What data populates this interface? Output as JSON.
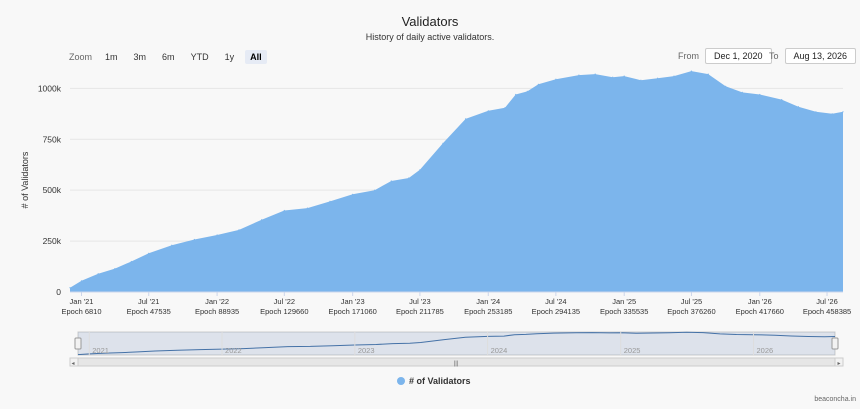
{
  "title": "Validators",
  "subtitle": "History of daily active validators.",
  "zoom": {
    "label": "Zoom",
    "buttons": [
      "1m",
      "3m",
      "6m",
      "YTD",
      "1y",
      "All"
    ],
    "active": "All"
  },
  "range": {
    "from_label": "From",
    "from_value": "Dec 1, 2020",
    "to_label": "To",
    "to_value": "Aug 13, 2026"
  },
  "credits": "beaconcha.in",
  "colors": {
    "series": "#7cb5ec",
    "navigator_line": "#4572a7"
  },
  "chart_data": {
    "type": "area",
    "title": "Validators",
    "subtitle": "History of daily active validators.",
    "ylabel": "# of Validators",
    "ylim": [
      0,
      1100000
    ],
    "yticks": [
      0,
      250000,
      500000,
      750000,
      1000000
    ],
    "ytick_labels": [
      "0",
      "250k",
      "500k",
      "750k",
      "1000k"
    ],
    "x_range": [
      "2020-12-01",
      "2026-08-13"
    ],
    "xticks": [
      {
        "date": "2021-01-01",
        "label": "Jan '21",
        "epoch": "Epoch 6810"
      },
      {
        "date": "2021-07-01",
        "label": "Jul '21",
        "epoch": "Epoch 47535"
      },
      {
        "date": "2022-01-01",
        "label": "Jan '22",
        "epoch": "Epoch 88935"
      },
      {
        "date": "2022-07-01",
        "label": "Jul '22",
        "epoch": "Epoch 129660"
      },
      {
        "date": "2023-01-01",
        "label": "Jan '23",
        "epoch": "Epoch 171060"
      },
      {
        "date": "2023-07-01",
        "label": "Jul '23",
        "epoch": "Epoch 211785"
      },
      {
        "date": "2024-01-01",
        "label": "Jan '24",
        "epoch": "Epoch 253185"
      },
      {
        "date": "2024-07-01",
        "label": "Jul '24",
        "epoch": "Epoch 294135"
      },
      {
        "date": "2025-01-01",
        "label": "Jan '25",
        "epoch": "Epoch 335535"
      },
      {
        "date": "2025-07-01",
        "label": "Jul '25",
        "epoch": "Epoch 376260"
      },
      {
        "date": "2026-01-01",
        "label": "Jan '26",
        "epoch": "Epoch 417660"
      },
      {
        "date": "2026-07-01",
        "label": "Jul '26",
        "epoch": "Epoch 458385"
      }
    ],
    "series": [
      {
        "name": "# of Validators",
        "points": [
          [
            "2020-12-01",
            21000
          ],
          [
            "2021-01-01",
            55000
          ],
          [
            "2021-02-15",
            90000
          ],
          [
            "2021-04-01",
            115000
          ],
          [
            "2021-05-15",
            150000
          ],
          [
            "2021-07-01",
            190000
          ],
          [
            "2021-09-01",
            230000
          ],
          [
            "2021-11-01",
            258000
          ],
          [
            "2022-01-01",
            280000
          ],
          [
            "2022-03-01",
            305000
          ],
          [
            "2022-05-01",
            355000
          ],
          [
            "2022-07-01",
            400000
          ],
          [
            "2022-09-01",
            412000
          ],
          [
            "2022-11-01",
            445000
          ],
          [
            "2023-01-01",
            480000
          ],
          [
            "2023-03-01",
            500000
          ],
          [
            "2023-04-15",
            545000
          ],
          [
            "2023-06-01",
            560000
          ],
          [
            "2023-07-01",
            600000
          ],
          [
            "2023-09-01",
            730000
          ],
          [
            "2023-11-01",
            850000
          ],
          [
            "2024-01-01",
            890000
          ],
          [
            "2024-02-15",
            905000
          ],
          [
            "2024-03-15",
            970000
          ],
          [
            "2024-04-15",
            985000
          ],
          [
            "2024-05-15",
            1020000
          ],
          [
            "2024-07-01",
            1045000
          ],
          [
            "2024-09-01",
            1065000
          ],
          [
            "2024-10-15",
            1070000
          ],
          [
            "2024-12-01",
            1055000
          ],
          [
            "2025-01-01",
            1060000
          ],
          [
            "2025-02-15",
            1040000
          ],
          [
            "2025-04-01",
            1050000
          ],
          [
            "2025-05-15",
            1060000
          ],
          [
            "2025-07-01",
            1085000
          ],
          [
            "2025-08-15",
            1070000
          ],
          [
            "2025-10-01",
            1010000
          ],
          [
            "2025-11-15",
            980000
          ],
          [
            "2026-01-01",
            970000
          ],
          [
            "2026-03-01",
            945000
          ],
          [
            "2026-04-15",
            910000
          ],
          [
            "2026-06-01",
            885000
          ],
          [
            "2026-07-15",
            875000
          ],
          [
            "2026-08-13",
            885000
          ]
        ]
      }
    ],
    "legend_placement": "bottom-center",
    "grid": "horizontal",
    "navigator": {
      "year_labels": [
        "2021",
        "2022",
        "2023",
        "2024",
        "2025",
        "2026"
      ],
      "handle_glyph": "|||"
    }
  }
}
